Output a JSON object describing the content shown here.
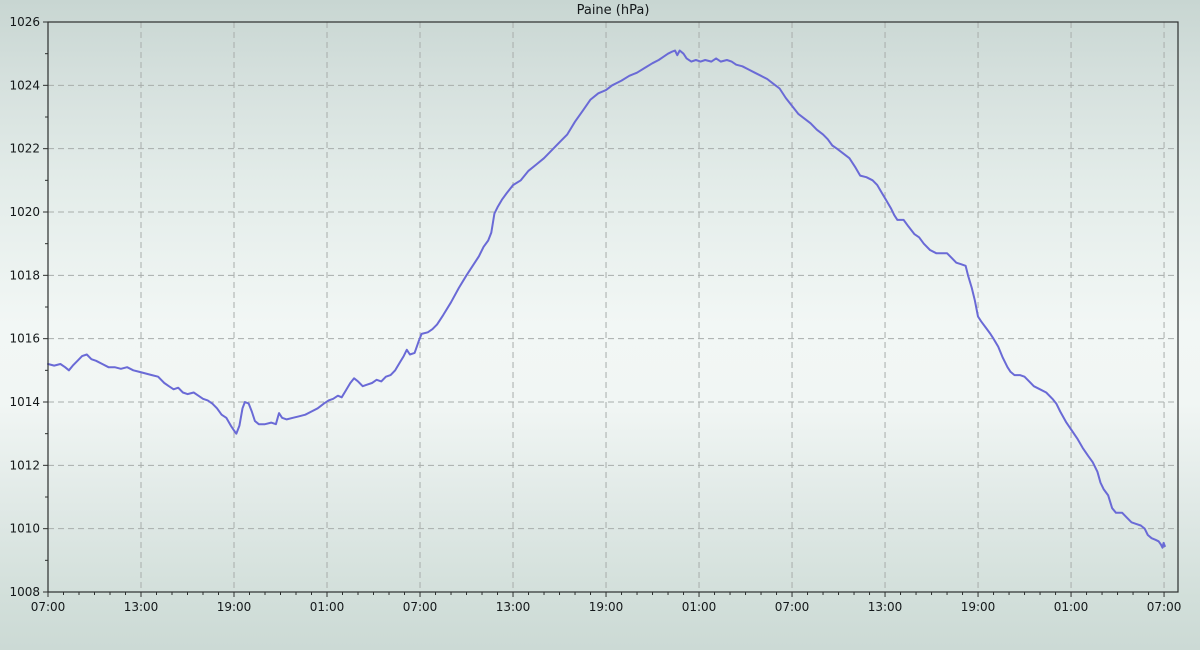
{
  "title": "Paine (hPa)",
  "colors": {
    "series_line": "#6a6ad6",
    "grid": "#a8adab",
    "axis": "#2c2f2e",
    "text": "#14181a",
    "background_top": "#c8d6d2",
    "background_middle": "#f2f7f5",
    "background_bottom": "#ccdad5"
  },
  "chart_data": {
    "type": "line",
    "title": "Paine (hPa)",
    "xlabel": "",
    "ylabel": "",
    "legend": "none",
    "grid": "dashed gridlines at labeled ticks",
    "x_unit": "hours from first sample (x labels are clock times over 3 days)",
    "xlim": [
      0,
      72.9
    ],
    "ylim": [
      1008,
      1026
    ],
    "x_axis": {
      "major_tick_hours": [
        0,
        6,
        12,
        18,
        24,
        30,
        36,
        42,
        48,
        54,
        60,
        66,
        72
      ],
      "labels": [
        "07:00",
        "13:00",
        "19:00",
        "01:00",
        "07:00",
        "13:00",
        "19:00",
        "01:00",
        "07:00",
        "13:00",
        "19:00",
        "01:00",
        "07:00"
      ],
      "minor_step_hours": 1
    },
    "y_axis": {
      "major_ticks": [
        1008,
        1010,
        1012,
        1014,
        1016,
        1018,
        1020,
        1022,
        1024,
        1026
      ],
      "labels": [
        "1008",
        "1010",
        "1012",
        "1014",
        "1016",
        "1018",
        "1020",
        "1022",
        "1024",
        "1026"
      ],
      "minor_step": 1,
      "unit": "hPa"
    },
    "series": [
      {
        "name": "Paine",
        "color": "#6a6ad6",
        "points": [
          [
            0,
            1015.2
          ],
          [
            0.4,
            1015.15
          ],
          [
            0.8,
            1015.2
          ],
          [
            1.1,
            1015.1
          ],
          [
            1.35,
            1015.0
          ],
          [
            1.6,
            1015.15
          ],
          [
            1.9,
            1015.3
          ],
          [
            2.2,
            1015.45
          ],
          [
            2.5,
            1015.5
          ],
          [
            2.8,
            1015.35
          ],
          [
            3.1,
            1015.3
          ],
          [
            3.5,
            1015.2
          ],
          [
            3.9,
            1015.1
          ],
          [
            4.3,
            1015.1
          ],
          [
            4.7,
            1015.05
          ],
          [
            5.1,
            1015.1
          ],
          [
            5.5,
            1015.0
          ],
          [
            5.9,
            1014.95
          ],
          [
            6.3,
            1014.9
          ],
          [
            6.7,
            1014.85
          ],
          [
            7.1,
            1014.8
          ],
          [
            7.5,
            1014.6
          ],
          [
            7.8,
            1014.5
          ],
          [
            8.1,
            1014.4
          ],
          [
            8.4,
            1014.45
          ],
          [
            8.7,
            1014.3
          ],
          [
            9.0,
            1014.25
          ],
          [
            9.4,
            1014.3
          ],
          [
            9.7,
            1014.2
          ],
          [
            10.0,
            1014.1
          ],
          [
            10.3,
            1014.05
          ],
          [
            10.6,
            1013.95
          ],
          [
            10.9,
            1013.8
          ],
          [
            11.2,
            1013.6
          ],
          [
            11.5,
            1013.5
          ],
          [
            11.8,
            1013.25
          ],
          [
            12.0,
            1013.1
          ],
          [
            12.15,
            1013.0
          ],
          [
            12.35,
            1013.25
          ],
          [
            12.55,
            1013.8
          ],
          [
            12.7,
            1014.0
          ],
          [
            12.95,
            1013.95
          ],
          [
            13.15,
            1013.7
          ],
          [
            13.35,
            1013.4
          ],
          [
            13.6,
            1013.3
          ],
          [
            14.0,
            1013.3
          ],
          [
            14.4,
            1013.35
          ],
          [
            14.7,
            1013.3
          ],
          [
            14.9,
            1013.65
          ],
          [
            15.1,
            1013.5
          ],
          [
            15.4,
            1013.45
          ],
          [
            15.8,
            1013.5
          ],
          [
            16.2,
            1013.55
          ],
          [
            16.6,
            1013.6
          ],
          [
            17.0,
            1013.7
          ],
          [
            17.4,
            1013.8
          ],
          [
            17.8,
            1013.95
          ],
          [
            18.1,
            1014.05
          ],
          [
            18.4,
            1014.1
          ],
          [
            18.7,
            1014.2
          ],
          [
            18.95,
            1014.15
          ],
          [
            19.2,
            1014.35
          ],
          [
            19.5,
            1014.6
          ],
          [
            19.75,
            1014.75
          ],
          [
            20.0,
            1014.65
          ],
          [
            20.3,
            1014.5
          ],
          [
            20.6,
            1014.55
          ],
          [
            20.9,
            1014.6
          ],
          [
            21.2,
            1014.7
          ],
          [
            21.5,
            1014.65
          ],
          [
            21.8,
            1014.8
          ],
          [
            22.1,
            1014.85
          ],
          [
            22.4,
            1015.0
          ],
          [
            22.7,
            1015.25
          ],
          [
            22.95,
            1015.45
          ],
          [
            23.15,
            1015.65
          ],
          [
            23.35,
            1015.5
          ],
          [
            23.65,
            1015.55
          ],
          [
            23.9,
            1015.9
          ],
          [
            24.1,
            1016.15
          ],
          [
            24.5,
            1016.2
          ],
          [
            24.8,
            1016.3
          ],
          [
            25.1,
            1016.45
          ],
          [
            25.5,
            1016.75
          ],
          [
            26.0,
            1017.15
          ],
          [
            26.5,
            1017.6
          ],
          [
            27.0,
            1018.0
          ],
          [
            27.4,
            1018.3
          ],
          [
            27.8,
            1018.6
          ],
          [
            28.1,
            1018.9
          ],
          [
            28.4,
            1019.1
          ],
          [
            28.6,
            1019.35
          ],
          [
            28.8,
            1019.95
          ],
          [
            29.0,
            1020.15
          ],
          [
            29.3,
            1020.4
          ],
          [
            29.6,
            1020.6
          ],
          [
            30.0,
            1020.85
          ],
          [
            30.5,
            1021.0
          ],
          [
            31.0,
            1021.3
          ],
          [
            31.5,
            1021.5
          ],
          [
            32.0,
            1021.7
          ],
          [
            32.5,
            1021.95
          ],
          [
            33.0,
            1022.2
          ],
          [
            33.5,
            1022.45
          ],
          [
            34.0,
            1022.85
          ],
          [
            34.5,
            1023.2
          ],
          [
            35.0,
            1023.55
          ],
          [
            35.5,
            1023.75
          ],
          [
            36.0,
            1023.85
          ],
          [
            36.4,
            1024.0
          ],
          [
            37.0,
            1024.15
          ],
          [
            37.5,
            1024.3
          ],
          [
            38.0,
            1024.4
          ],
          [
            38.5,
            1024.55
          ],
          [
            39.0,
            1024.7
          ],
          [
            39.4,
            1024.8
          ],
          [
            39.7,
            1024.9
          ],
          [
            40.0,
            1025.0
          ],
          [
            40.2,
            1025.05
          ],
          [
            40.45,
            1025.1
          ],
          [
            40.6,
            1024.95
          ],
          [
            40.75,
            1025.1
          ],
          [
            41.0,
            1025.0
          ],
          [
            41.2,
            1024.85
          ],
          [
            41.5,
            1024.75
          ],
          [
            41.8,
            1024.8
          ],
          [
            42.1,
            1024.75
          ],
          [
            42.4,
            1024.8
          ],
          [
            42.8,
            1024.75
          ],
          [
            43.1,
            1024.85
          ],
          [
            43.4,
            1024.75
          ],
          [
            43.8,
            1024.8
          ],
          [
            44.1,
            1024.75
          ],
          [
            44.4,
            1024.65
          ],
          [
            44.8,
            1024.6
          ],
          [
            45.2,
            1024.5
          ],
          [
            45.6,
            1024.4
          ],
          [
            46.0,
            1024.3
          ],
          [
            46.4,
            1024.2
          ],
          [
            46.8,
            1024.05
          ],
          [
            47.2,
            1023.9
          ],
          [
            47.6,
            1023.6
          ],
          [
            48.0,
            1023.35
          ],
          [
            48.4,
            1023.1
          ],
          [
            48.8,
            1022.95
          ],
          [
            49.2,
            1022.8
          ],
          [
            49.6,
            1022.6
          ],
          [
            50.0,
            1022.45
          ],
          [
            50.3,
            1022.3
          ],
          [
            50.6,
            1022.1
          ],
          [
            50.9,
            1022.0
          ],
          [
            51.3,
            1021.85
          ],
          [
            51.7,
            1021.7
          ],
          [
            52.1,
            1021.4
          ],
          [
            52.4,
            1021.15
          ],
          [
            52.8,
            1021.1
          ],
          [
            53.2,
            1021.0
          ],
          [
            53.5,
            1020.85
          ],
          [
            53.8,
            1020.6
          ],
          [
            54.1,
            1020.35
          ],
          [
            54.4,
            1020.1
          ],
          [
            54.6,
            1019.9
          ],
          [
            54.8,
            1019.75
          ],
          [
            55.2,
            1019.75
          ],
          [
            55.5,
            1019.55
          ],
          [
            55.9,
            1019.3
          ],
          [
            56.2,
            1019.2
          ],
          [
            56.5,
            1019.0
          ],
          [
            56.9,
            1018.8
          ],
          [
            57.3,
            1018.7
          ],
          [
            57.7,
            1018.7
          ],
          [
            58.0,
            1018.7
          ],
          [
            58.3,
            1018.55
          ],
          [
            58.6,
            1018.4
          ],
          [
            58.9,
            1018.35
          ],
          [
            59.2,
            1018.3
          ],
          [
            59.35,
            1018.0
          ],
          [
            59.6,
            1017.6
          ],
          [
            59.8,
            1017.2
          ],
          [
            60.0,
            1016.7
          ],
          [
            60.2,
            1016.55
          ],
          [
            60.5,
            1016.35
          ],
          [
            60.8,
            1016.15
          ],
          [
            61.0,
            1016.0
          ],
          [
            61.3,
            1015.75
          ],
          [
            61.6,
            1015.4
          ],
          [
            61.9,
            1015.1
          ],
          [
            62.1,
            1014.95
          ],
          [
            62.35,
            1014.85
          ],
          [
            62.7,
            1014.85
          ],
          [
            63.0,
            1014.8
          ],
          [
            63.3,
            1014.65
          ],
          [
            63.6,
            1014.5
          ],
          [
            64.0,
            1014.4
          ],
          [
            64.4,
            1014.3
          ],
          [
            64.8,
            1014.1
          ],
          [
            65.05,
            1013.95
          ],
          [
            65.3,
            1013.7
          ],
          [
            65.7,
            1013.35
          ],
          [
            66.05,
            1013.1
          ],
          [
            66.4,
            1012.85
          ],
          [
            66.75,
            1012.55
          ],
          [
            67.1,
            1012.3
          ],
          [
            67.4,
            1012.1
          ],
          [
            67.7,
            1011.8
          ],
          [
            67.9,
            1011.45
          ],
          [
            68.1,
            1011.25
          ],
          [
            68.4,
            1011.05
          ],
          [
            68.65,
            1010.65
          ],
          [
            68.9,
            1010.5
          ],
          [
            69.3,
            1010.5
          ],
          [
            69.6,
            1010.35
          ],
          [
            69.9,
            1010.2
          ],
          [
            70.2,
            1010.15
          ],
          [
            70.5,
            1010.1
          ],
          [
            70.75,
            1010.0
          ],
          [
            70.95,
            1009.8
          ],
          [
            71.2,
            1009.7
          ],
          [
            71.45,
            1009.65
          ],
          [
            71.65,
            1009.6
          ],
          [
            71.8,
            1009.5
          ],
          [
            71.9,
            1009.4
          ],
          [
            71.97,
            1009.55
          ],
          [
            72.05,
            1009.45
          ]
        ]
      }
    ]
  }
}
